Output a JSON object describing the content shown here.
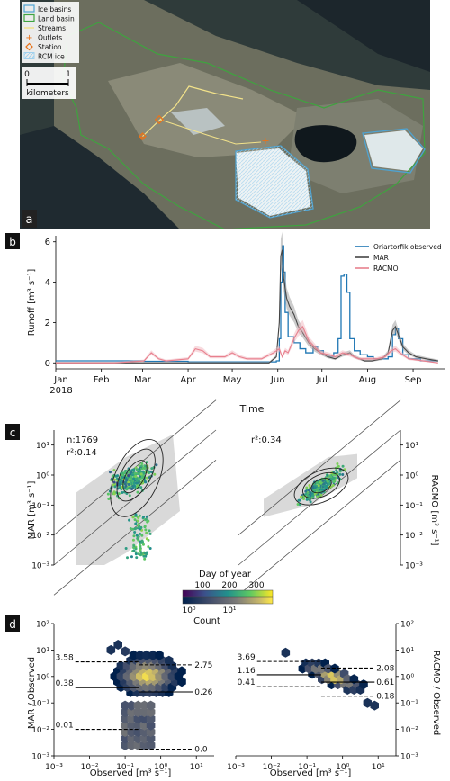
{
  "panel_a": {
    "letter": "a",
    "legend": [
      {
        "label": "Ice basins",
        "kind": "box",
        "color": "#4fa3d1"
      },
      {
        "label": "Land basin",
        "kind": "box",
        "color": "#3fa33f"
      },
      {
        "label": "Streams",
        "kind": "line",
        "color": "#f2e28a"
      },
      {
        "label": "Outlets",
        "kind": "plus",
        "color": "#e8731a"
      },
      {
        "label": "Station",
        "kind": "diamond",
        "color": "#e8731a"
      },
      {
        "label": "RCM ice",
        "kind": "hatch",
        "color": "#9fd0ee"
      }
    ],
    "scalebar": {
      "left": "0",
      "right": "1",
      "unit": "kilometers"
    }
  },
  "chart_data": [
    {
      "type": "line",
      "panel": "b",
      "ylabel": "Runoff [m³ s⁻¹]",
      "xlabel": "Time",
      "x_ticks": [
        "Jan",
        "Feb",
        "Mar",
        "Apr",
        "May",
        "Jun",
        "Jul",
        "Aug",
        "Sep"
      ],
      "x_tick_year": "2018",
      "ylim": [
        -0.3,
        6.3
      ],
      "y_ticks": [
        0,
        2,
        4,
        6
      ],
      "series": [
        {
          "name": "Oriartorfik observed",
          "color": "#1f77b4",
          "points": [
            [
              0,
              0.1
            ],
            [
              30,
              0.1
            ],
            [
              60,
              0.08
            ],
            [
              90,
              0.05
            ],
            [
              120,
              0.05
            ],
            [
              145,
              0.05
            ],
            [
              150,
              0.1
            ],
            [
              152,
              1.2
            ],
            [
              153,
              4.0
            ],
            [
              154,
              5.8
            ],
            [
              155,
              4.5
            ],
            [
              156,
              2.5
            ],
            [
              158,
              1.3
            ],
            [
              162,
              1.0
            ],
            [
              166,
              0.7
            ],
            [
              170,
              0.5
            ],
            [
              175,
              0.8
            ],
            [
              178,
              0.6
            ],
            [
              182,
              0.4
            ],
            [
              186,
              0.3
            ],
            [
              189,
              0.5
            ],
            [
              192,
              1.2
            ],
            [
              194,
              4.3
            ],
            [
              196,
              4.4
            ],
            [
              198,
              3.5
            ],
            [
              200,
              1.2
            ],
            [
              203,
              0.6
            ],
            [
              207,
              0.4
            ],
            [
              212,
              0.3
            ],
            [
              216,
              0.2
            ],
            [
              222,
              0.2
            ],
            [
              226,
              0.3
            ],
            [
              229,
              1.4
            ],
            [
              231,
              1.7
            ],
            [
              233,
              1.2
            ],
            [
              236,
              0.4
            ],
            [
              240,
              0.2
            ],
            [
              248,
              0.1
            ],
            [
              260,
              0.1
            ]
          ]
        },
        {
          "name": "MAR",
          "color": "#444444",
          "points": [
            [
              0,
              0.0
            ],
            [
              60,
              0.0
            ],
            [
              120,
              0.0
            ],
            [
              145,
              0.0
            ],
            [
              150,
              0.3
            ],
            [
              152,
              2.0
            ],
            [
              153,
              5.3
            ],
            [
              154,
              5.6
            ],
            [
              155,
              4.2
            ],
            [
              157,
              3.2
            ],
            [
              159,
              2.8
            ],
            [
              162,
              2.4
            ],
            [
              165,
              1.8
            ],
            [
              168,
              1.5
            ],
            [
              172,
              1.0
            ],
            [
              176,
              0.7
            ],
            [
              180,
              0.5
            ],
            [
              185,
              0.3
            ],
            [
              190,
              0.2
            ],
            [
              195,
              0.4
            ],
            [
              200,
              0.5
            ],
            [
              203,
              0.3
            ],
            [
              210,
              0.1
            ],
            [
              215,
              0.1
            ],
            [
              222,
              0.2
            ],
            [
              226,
              0.5
            ],
            [
              229,
              1.6
            ],
            [
              231,
              1.8
            ],
            [
              233,
              1.4
            ],
            [
              236,
              0.8
            ],
            [
              240,
              0.5
            ],
            [
              245,
              0.3
            ],
            [
              252,
              0.2
            ],
            [
              260,
              0.1
            ]
          ]
        },
        {
          "name": "RACMO",
          "color": "#e8808e",
          "points": [
            [
              0,
              0.0
            ],
            [
              40,
              0.0
            ],
            [
              60,
              0.1
            ],
            [
              65,
              0.5
            ],
            [
              70,
              0.2
            ],
            [
              75,
              0.1
            ],
            [
              90,
              0.2
            ],
            [
              95,
              0.7
            ],
            [
              100,
              0.6
            ],
            [
              105,
              0.3
            ],
            [
              115,
              0.3
            ],
            [
              120,
              0.5
            ],
            [
              125,
              0.3
            ],
            [
              130,
              0.2
            ],
            [
              140,
              0.2
            ],
            [
              148,
              0.5
            ],
            [
              152,
              0.7
            ],
            [
              154,
              0.3
            ],
            [
              156,
              0.6
            ],
            [
              158,
              0.5
            ],
            [
              162,
              1.2
            ],
            [
              165,
              1.6
            ],
            [
              168,
              1.8
            ],
            [
              172,
              1.1
            ],
            [
              176,
              0.8
            ],
            [
              180,
              0.5
            ],
            [
              186,
              0.4
            ],
            [
              190,
              0.3
            ],
            [
              195,
              0.5
            ],
            [
              200,
              0.4
            ],
            [
              206,
              0.2
            ],
            [
              212,
              0.2
            ],
            [
              218,
              0.2
            ],
            [
              224,
              0.3
            ],
            [
              228,
              0.6
            ],
            [
              231,
              0.7
            ],
            [
              234,
              0.5
            ],
            [
              240,
              0.2
            ],
            [
              250,
              0.1
            ],
            [
              260,
              0.0
            ]
          ]
        }
      ]
    },
    {
      "type": "scatter",
      "panel": "c-left",
      "ylabel": "MAR [m³ s⁻¹]",
      "scale": "log",
      "xlim": [
        -3,
        1.5
      ],
      "ylim": [
        -3,
        1.5
      ],
      "y_ticks": [
        "10⁻³",
        "10⁻²",
        "10⁻¹",
        "10⁰",
        "10¹"
      ],
      "annotations": [
        "n:1769",
        "r²:0.14"
      ]
    },
    {
      "type": "scatter",
      "panel": "c-right",
      "ylabel": "RACMO [m³ s⁻¹]",
      "scale": "log",
      "xlim": [
        -3,
        1.5
      ],
      "ylim": [
        -3,
        1.5
      ],
      "y_ticks": [
        "10⁻³",
        "10⁻²",
        "10⁻¹",
        "10⁰",
        "10¹"
      ],
      "annotations": [
        "r²:0.34"
      ]
    },
    {
      "type": "heatmap",
      "panel": "d-left",
      "xlabel": "Observed [m³ s⁻¹]",
      "ylabel": "MAR / Observed",
      "scale": "log",
      "ylim": [
        -3,
        2
      ],
      "x_ticks": [
        "10⁻³",
        "10⁻²",
        "10⁻¹",
        "10⁰",
        "10¹"
      ],
      "y_ticks": [
        "10⁻³",
        "10⁻²",
        "10⁻¹",
        "10⁰",
        "10¹",
        "10²"
      ],
      "left_labels": [
        {
          "text": "3.58",
          "v": 3.58
        },
        {
          "text": "0.38",
          "v": 0.38
        },
        {
          "text": "0.01",
          "v": 0.01
        }
      ],
      "right_labels": [
        {
          "text": "2.75",
          "v": 2.75
        },
        {
          "text": "0.26",
          "v": 0.26
        },
        {
          "text": "0.0",
          "v": 0.0018
        }
      ]
    },
    {
      "type": "heatmap",
      "panel": "d-right",
      "xlabel": "Observed [m³ s⁻¹]",
      "ylabel": "RACMO / Observed",
      "scale": "log",
      "ylim": [
        -3,
        2
      ],
      "x_ticks": [
        "10⁻³",
        "10⁻²",
        "10⁻¹",
        "10⁰",
        "10¹"
      ],
      "y_ticks": [
        "10⁻³",
        "10⁻²",
        "10⁻¹",
        "10⁰",
        "10¹",
        "10²"
      ],
      "left_labels": [
        {
          "text": "3.69",
          "v": 3.69
        },
        {
          "text": "1.16",
          "v": 1.16
        },
        {
          "text": "0.41",
          "v": 0.41
        }
      ],
      "right_labels": [
        {
          "text": "2.08",
          "v": 2.08
        },
        {
          "text": "0.61",
          "v": 0.61
        },
        {
          "text": "0.18",
          "v": 0.18
        }
      ]
    }
  ],
  "colorbars": {
    "doy": {
      "label": "Day of year",
      "ticks": [
        "100",
        "200",
        "300"
      ]
    },
    "count": {
      "label": "Count",
      "ticks": [
        "10⁰",
        "10¹"
      ]
    }
  },
  "panel_letters": {
    "b": "b",
    "c": "c",
    "d": "d"
  }
}
